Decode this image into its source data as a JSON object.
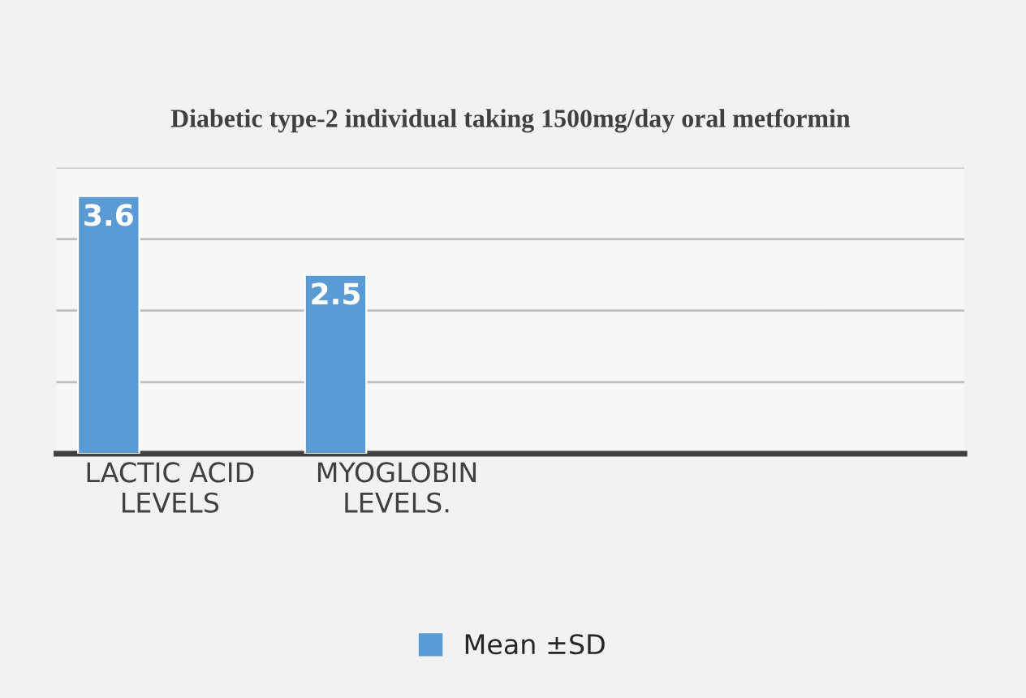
{
  "chart_data": {
    "type": "bar",
    "title": "Diabetic type-2 individual taking 1500mg/day oral metformin",
    "categories": [
      "LACTIC ACID\nLEVELS",
      "MYOGLOBIN\nLEVELS.",
      null,
      null
    ],
    "series": [
      {
        "name": "Mean ±SD",
        "color": "#5b9bd5",
        "values": [
          3.6,
          2.5,
          null,
          null
        ]
      }
    ],
    "relative": false,
    "ylim": [
      0,
      4
    ],
    "yticks": [
      {
        "value": 0,
        "label": null
      },
      {
        "value": 1,
        "label": null
      },
      {
        "value": 2,
        "label": null
      },
      {
        "value": 3,
        "label": null
      },
      {
        "value": 4,
        "label": null
      }
    ],
    "tick_labels": "x",
    "grid": "y",
    "legend": "bottom",
    "data_labels": true
  }
}
